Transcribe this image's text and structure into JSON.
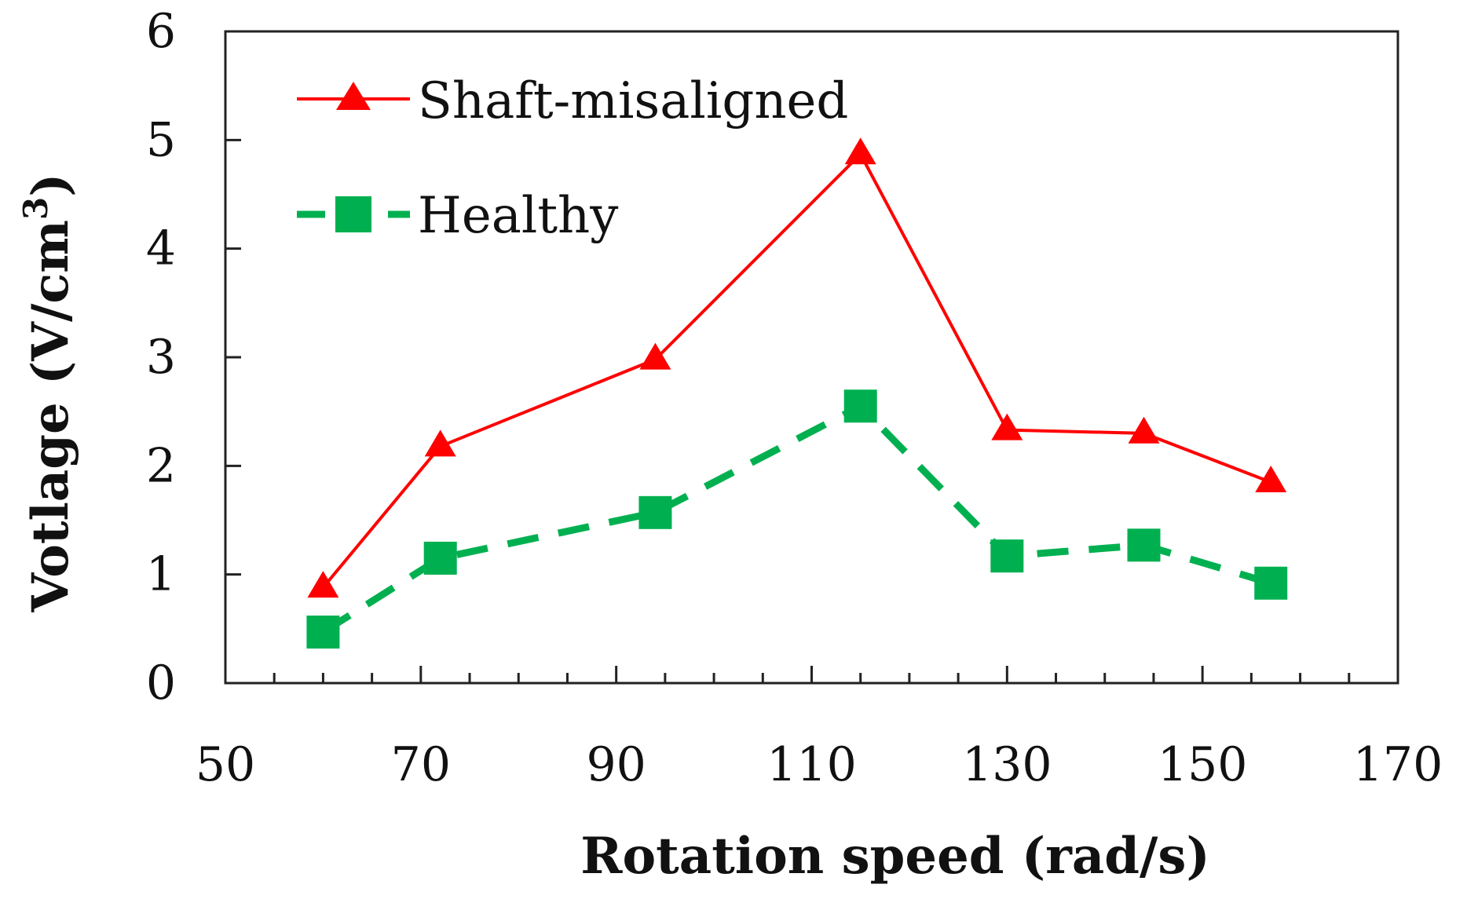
{
  "chart_data": {
    "type": "line",
    "xlabel": "Rotation speed (rad/s)",
    "ylabel_main": "Votlage (V/cm",
    "ylabel_sup": "3",
    "ylabel_close": ")",
    "xlim": [
      50,
      170
    ],
    "ylim": [
      0,
      6
    ],
    "x_major_ticks": [
      50,
      70,
      90,
      110,
      130,
      150,
      170
    ],
    "x_minor_step": 5,
    "y_major_ticks": [
      0,
      1,
      2,
      3,
      4,
      5,
      6
    ],
    "x_tick_labels": [
      "50",
      "70",
      "90",
      "110",
      "130",
      "150",
      "170"
    ],
    "y_tick_labels": [
      "0",
      "1",
      "2",
      "3",
      "4",
      "5",
      "6"
    ],
    "grid": false,
    "legend_position": "top-left",
    "series": [
      {
        "name": "Shaft-misaligned",
        "color": "#ff0000",
        "marker": "triangle",
        "line_style": "solid",
        "x": [
          60,
          72,
          94,
          115,
          130,
          144,
          157
        ],
        "y": [
          0.88,
          2.18,
          2.98,
          4.87,
          2.33,
          2.3,
          1.85
        ]
      },
      {
        "name": "Healthy",
        "color": "#00b050",
        "marker": "square",
        "line_style": "dashed",
        "x": [
          60,
          72,
          94,
          115,
          130,
          144,
          157
        ],
        "y": [
          0.47,
          1.15,
          1.57,
          2.55,
          1.17,
          1.27,
          0.92
        ]
      }
    ]
  }
}
